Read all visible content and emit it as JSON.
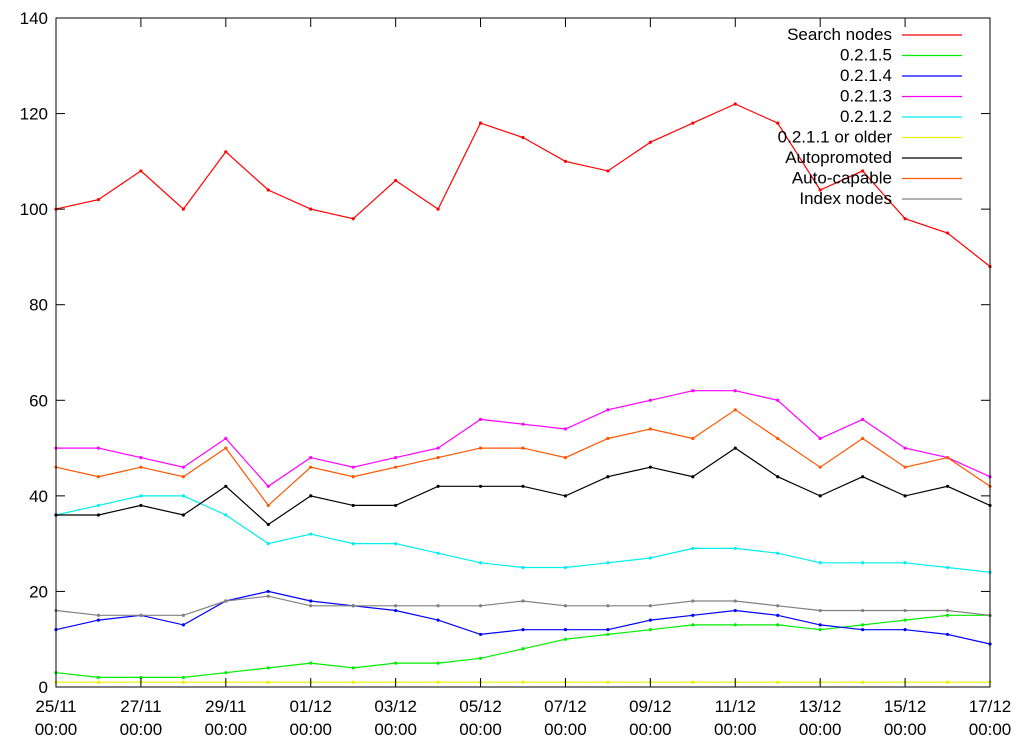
{
  "chart_data": {
    "type": "line",
    "title": "",
    "xlabel": "",
    "ylabel": "",
    "grid": false,
    "legend_position": "top-right",
    "xlim": [
      "25/11 00:00",
      "17/12 00:00"
    ],
    "ylim": [
      0,
      140
    ],
    "yticks": [
      0,
      20,
      40,
      60,
      80,
      100,
      120,
      140
    ],
    "xticks": [
      {
        "date": "25/11",
        "time": "00:00"
      },
      {
        "date": "27/11",
        "time": "00:00"
      },
      {
        "date": "29/11",
        "time": "00:00"
      },
      {
        "date": "01/12",
        "time": "00:00"
      },
      {
        "date": "03/12",
        "time": "00:00"
      },
      {
        "date": "05/12",
        "time": "00:00"
      },
      {
        "date": "07/12",
        "time": "00:00"
      },
      {
        "date": "09/12",
        "time": "00:00"
      },
      {
        "date": "11/12",
        "time": "00:00"
      },
      {
        "date": "13/12",
        "time": "00:00"
      },
      {
        "date": "15/12",
        "time": "00:00"
      },
      {
        "date": "17/12",
        "time": "00:00"
      }
    ],
    "x": [
      "25/11",
      "26/11",
      "27/11",
      "28/11",
      "29/11",
      "30/11",
      "01/12",
      "02/12",
      "03/12",
      "04/12",
      "05/12",
      "06/12",
      "07/12",
      "08/12",
      "09/12",
      "10/12",
      "11/12",
      "12/12",
      "13/12",
      "14/12",
      "15/12",
      "16/12",
      "17/12"
    ],
    "series": [
      {
        "name": "Search nodes",
        "color": "#ff0000",
        "values": [
          100,
          102,
          108,
          100,
          112,
          104,
          100,
          98,
          106,
          100,
          118,
          115,
          110,
          108,
          114,
          118,
          122,
          118,
          104,
          108,
          98,
          95,
          88
        ]
      },
      {
        "name": "0.2.1.5",
        "color": "#00ee00",
        "values": [
          3,
          2,
          2,
          2,
          3,
          4,
          5,
          4,
          5,
          5,
          6,
          8,
          10,
          11,
          12,
          13,
          13,
          13,
          12,
          13,
          14,
          15,
          15
        ]
      },
      {
        "name": "0.2.1.4",
        "color": "#0000ff",
        "values": [
          12,
          14,
          15,
          13,
          18,
          20,
          18,
          17,
          16,
          14,
          11,
          12,
          12,
          12,
          14,
          15,
          16,
          15,
          13,
          12,
          12,
          11,
          9
        ]
      },
      {
        "name": "0.2.1.3",
        "color": "#ff00ff",
        "values": [
          50,
          50,
          48,
          46,
          52,
          42,
          48,
          46,
          48,
          50,
          56,
          55,
          54,
          58,
          60,
          62,
          62,
          60,
          52,
          56,
          50,
          48,
          44
        ]
      },
      {
        "name": "0.2.1.2",
        "color": "#00eeee",
        "values": [
          36,
          38,
          40,
          40,
          36,
          30,
          32,
          30,
          30,
          28,
          26,
          25,
          25,
          26,
          27,
          29,
          29,
          28,
          26,
          26,
          26,
          25,
          24
        ]
      },
      {
        "name": "0.2.1.1 or older",
        "color": "#eeee00",
        "values": [
          1,
          1,
          1,
          1,
          1,
          1,
          1,
          1,
          1,
          1,
          1,
          1,
          1,
          1,
          1,
          1,
          1,
          1,
          1,
          1,
          1,
          1,
          1
        ]
      },
      {
        "name": "Autopromoted",
        "color": "#000000",
        "values": [
          36,
          36,
          38,
          36,
          42,
          34,
          40,
          38,
          38,
          42,
          42,
          42,
          40,
          44,
          46,
          44,
          50,
          44,
          40,
          44,
          40,
          42,
          38
        ]
      },
      {
        "name": "Auto-capable",
        "color": "#ff5500",
        "values": [
          46,
          44,
          46,
          44,
          50,
          38,
          46,
          44,
          46,
          48,
          50,
          50,
          48,
          52,
          54,
          52,
          58,
          52,
          46,
          52,
          46,
          48,
          42
        ]
      },
      {
        "name": "Index nodes",
        "color": "#808080",
        "values": [
          16,
          15,
          15,
          15,
          18,
          19,
          17,
          17,
          17,
          17,
          17,
          18,
          17,
          17,
          17,
          18,
          18,
          17,
          16,
          16,
          16,
          16,
          15
        ]
      }
    ]
  }
}
